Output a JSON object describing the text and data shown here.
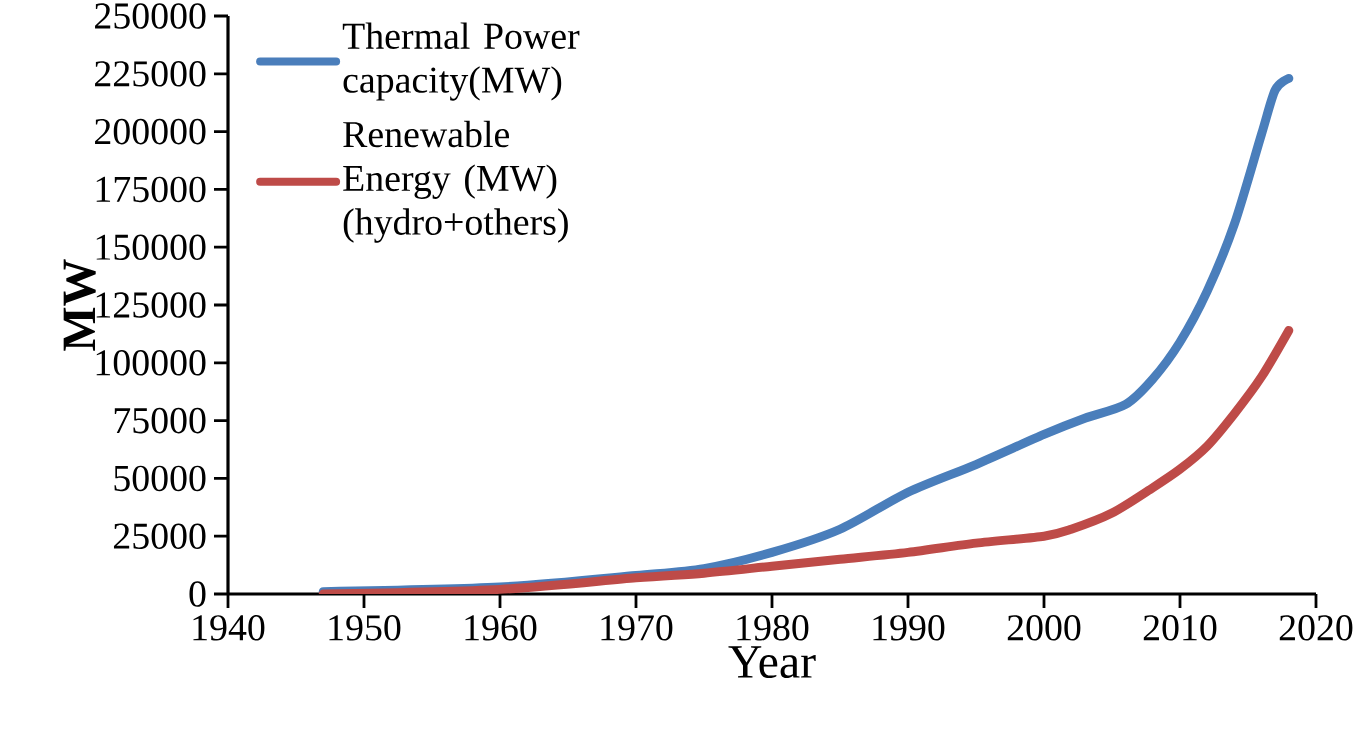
{
  "chart_data": {
    "type": "line",
    "xlabel": "Year",
    "ylabel": "MW",
    "xlim": [
      1940,
      2020
    ],
    "xticks": [
      1940,
      1950,
      1960,
      1970,
      1980,
      1990,
      2000,
      2010,
      2020
    ],
    "ylim": [
      0,
      250000
    ],
    "yticks": [
      0,
      25000,
      50000,
      75000,
      100000,
      125000,
      150000,
      175000,
      200000,
      225000,
      250000
    ],
    "grid": false,
    "legend": "top left",
    "marker": "none",
    "line_style": "solid",
    "series": [
      {
        "name": "Thermal Power capacity(MW)",
        "color": "#4a7ebb",
        "x": [
          1947,
          1960,
          1970,
          1975,
          1980,
          1985,
          1990,
          1995,
          2000,
          2003,
          2006,
          2008,
          2010,
          2012,
          2014,
          2016,
          2017,
          2018
        ],
        "values": [
          1000,
          3000,
          8000,
          11000,
          18000,
          28000,
          44000,
          56000,
          69000,
          76000,
          82000,
          93000,
          109000,
          131000,
          160000,
          199000,
          218000,
          223000
        ]
      },
      {
        "name": "Renewable Energy (MW) (hydro+others)",
        "color": "#be4b48",
        "x": [
          1947,
          1960,
          1970,
          1975,
          1980,
          1985,
          1990,
          1995,
          2000,
          2002,
          2005,
          2008,
          2010,
          2012,
          2014,
          2016,
          2018
        ],
        "values": [
          0,
          2000,
          7000,
          9000,
          12000,
          15000,
          18000,
          22000,
          25000,
          28000,
          35000,
          46000,
          54000,
          64000,
          78000,
          94000,
          114000
        ]
      }
    ]
  }
}
